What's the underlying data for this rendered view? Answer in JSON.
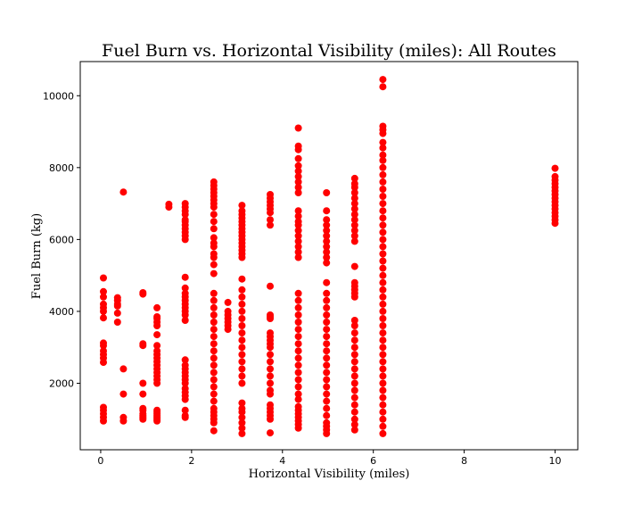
{
  "chart_data": {
    "type": "scatter",
    "title": "Fuel Burn vs. Horizontal Visibility (miles): All Routes",
    "xlabel": "Horizontal Visibility (miles)",
    "ylabel": "Fuel Burn (kg)",
    "xlim": [
      -0.45,
      10.5
    ],
    "ylim": [
      150,
      10950
    ],
    "xticks": [
      0,
      2,
      4,
      6,
      8,
      10
    ],
    "yticks": [
      2000,
      4000,
      6000,
      8000,
      10000
    ],
    "grid": false,
    "marker_color": "#ff0000",
    "columns": [
      {
        "x": 0.06,
        "values": [
          950,
          1050,
          1150,
          1250,
          1330,
          2580,
          2700,
          2800,
          2900,
          3050,
          3120,
          3820,
          4000,
          4100,
          4200,
          4400,
          4550,
          4930
        ]
      },
      {
        "x": 0.37,
        "values": [
          3700,
          3950,
          4150,
          4200,
          4300,
          4380
        ]
      },
      {
        "x": 0.5,
        "values": [
          950,
          1050,
          1700,
          2400,
          7320
        ]
      },
      {
        "x": 0.93,
        "values": [
          1000,
          1050,
          1100,
          1150,
          1250,
          1300,
          1700,
          2000,
          3050,
          3100,
          4480,
          4520
        ]
      },
      {
        "x": 1.24,
        "values": [
          950,
          1000,
          1050,
          1100,
          1150,
          1200,
          1250,
          2000,
          2100,
          2200,
          2300,
          2400,
          2500,
          2600,
          2700,
          2800,
          2900,
          3050,
          3350,
          3600,
          3700,
          3800,
          3850,
          4100
        ]
      },
      {
        "x": 1.5,
        "values": [
          6900,
          6980
        ]
      },
      {
        "x": 1.86,
        "values": [
          1050,
          1100,
          1250,
          1550,
          1650,
          1750,
          1850,
          2000,
          2100,
          2200,
          2300,
          2400,
          2500,
          2650,
          3750,
          3900,
          4000,
          4100,
          4200,
          4300,
          4400,
          4500,
          4650,
          4950,
          6000,
          6100,
          6200,
          6300,
          6400,
          6500,
          6550,
          6700,
          6800,
          6900,
          7000
        ]
      },
      {
        "x": 2.49,
        "values": [
          680,
          900,
          1000,
          1100,
          1200,
          1300,
          1500,
          1700,
          1900,
          2100,
          2300,
          2500,
          2700,
          2900,
          3100,
          3300,
          3500,
          3700,
          3900,
          4100,
          4300,
          4500,
          5050,
          5300,
          5500,
          5600,
          5800,
          5900,
          6050,
          6300,
          6500,
          6700,
          6900,
          7000,
          7100,
          7200,
          7300,
          7400,
          7500,
          7600
        ]
      },
      {
        "x": 2.8,
        "values": [
          3500,
          3600,
          3700,
          3800,
          3900,
          4000,
          4250
        ]
      },
      {
        "x": 3.11,
        "values": [
          600,
          750,
          900,
          1050,
          1200,
          1300,
          1450,
          2000,
          2200,
          2400,
          2600,
          2800,
          3000,
          3200,
          3400,
          3600,
          3800,
          4000,
          4200,
          4400,
          4600,
          4900,
          5500,
          5600,
          5700,
          5800,
          5900,
          6000,
          6100,
          6200,
          6300,
          6400,
          6500,
          6600,
          6700,
          6800,
          6950
        ]
      },
      {
        "x": 3.73,
        "values": [
          620,
          1000,
          1100,
          1200,
          1300,
          1400,
          1700,
          1800,
          2000,
          2200,
          2400,
          2600,
          2800,
          3000,
          3100,
          3200,
          3300,
          3400,
          3800,
          3850,
          3900,
          4700,
          6400,
          6550,
          6750,
          6850,
          6950,
          7050,
          7150,
          7250
        ]
      },
      {
        "x": 4.35,
        "values": [
          750,
          850,
          950,
          1050,
          1150,
          1250,
          1350,
          1550,
          1700,
          1900,
          2100,
          2300,
          2500,
          2700,
          2900,
          3100,
          3300,
          3500,
          3700,
          3900,
          4100,
          4300,
          4500,
          5500,
          5650,
          5800,
          5950,
          6100,
          6250,
          6400,
          6500,
          6650,
          6800,
          7300,
          7450,
          7600,
          7750,
          7900,
          8050,
          8250,
          8500,
          8600,
          9100
        ]
      },
      {
        "x": 4.97,
        "values": [
          600,
          700,
          800,
          900,
          1100,
          1300,
          1500,
          1700,
          1900,
          2100,
          2300,
          2500,
          2700,
          2900,
          3100,
          3300,
          3500,
          3700,
          3900,
          4100,
          4300,
          4500,
          4800,
          5350,
          5500,
          5650,
          5800,
          5950,
          6100,
          6250,
          6400,
          6550,
          6800,
          7300
        ]
      },
      {
        "x": 5.59,
        "values": [
          700,
          850,
          1000,
          1200,
          1400,
          1600,
          1800,
          2000,
          2200,
          2400,
          2600,
          2800,
          3000,
          3200,
          3400,
          3600,
          3750,
          4400,
          4500,
          4600,
          4700,
          4800,
          5250,
          5950,
          6100,
          6250,
          6400,
          6550,
          6700,
          6850,
          7000,
          7150,
          7300,
          7450,
          7550,
          7700
        ]
      },
      {
        "x": 6.21,
        "values": [
          600,
          800,
          1000,
          1200,
          1400,
          1600,
          1800,
          2000,
          2200,
          2400,
          2600,
          2800,
          3000,
          3200,
          3400,
          3600,
          3800,
          4000,
          4200,
          4400,
          4600,
          4800,
          5000,
          5200,
          5400,
          5600,
          5800,
          6000,
          6200,
          6400,
          6600,
          6800,
          7000,
          7200,
          7400,
          7600,
          7800,
          8000,
          8200,
          8350,
          8550,
          8700,
          8950,
          9050,
          9150,
          10250,
          10450
        ]
      },
      {
        "x": 10.0,
        "values": [
          6450,
          6550,
          6650,
          6750,
          6850,
          6950,
          7050,
          7150,
          7250,
          7350,
          7450,
          7550,
          7650,
          7750,
          7980
        ]
      }
    ]
  }
}
